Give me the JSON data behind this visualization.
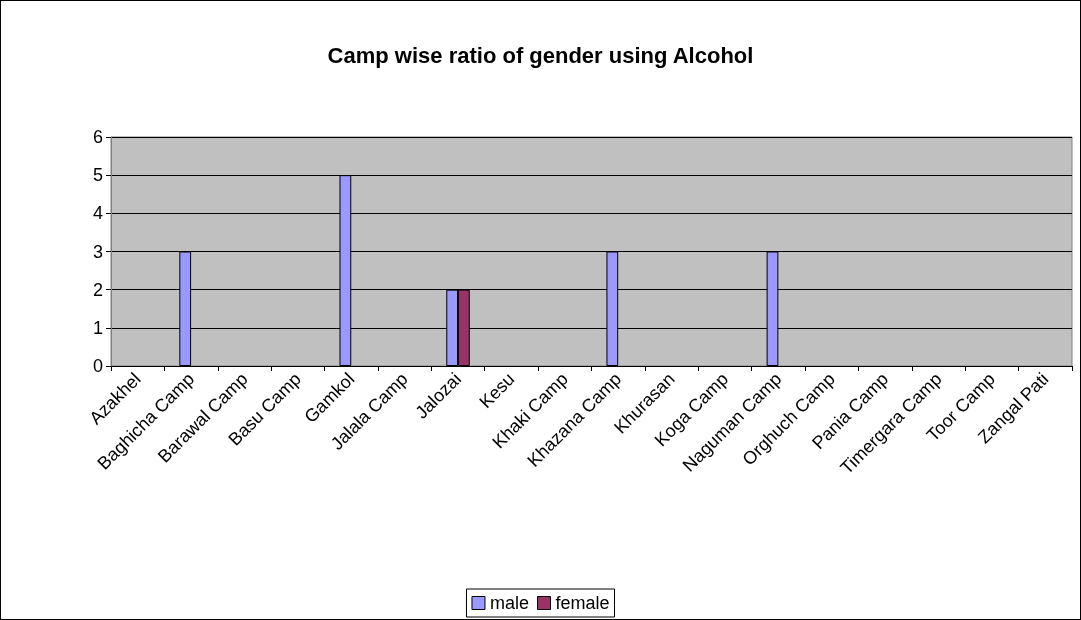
{
  "chart_data": {
    "type": "bar",
    "title": "Camp wise ratio of gender using Alcohol",
    "categories": [
      "Azakhel",
      "Baghicha Camp",
      "Barawal Camp",
      "Basu Camp",
      "Gamkol",
      "Jalala Camp",
      "Jalozai",
      "Kesu",
      "Khaki Camp",
      "Khazana Camp",
      "Khurasan",
      "Koga Camp",
      "Naguman Camp",
      "Orghuch Camp",
      "Pania Camp",
      "Timergara Camp",
      "Toor Camp",
      "Zangal Pati"
    ],
    "series": [
      {
        "name": "male",
        "color": "#9999ff",
        "values": [
          null,
          3,
          null,
          null,
          5,
          null,
          2,
          null,
          null,
          3,
          null,
          null,
          3,
          null,
          null,
          null,
          null,
          null
        ]
      },
      {
        "name": "female",
        "color": "#993366",
        "values": [
          null,
          null,
          null,
          null,
          null,
          null,
          2,
          null,
          null,
          null,
          null,
          null,
          null,
          null,
          null,
          null,
          null,
          null
        ]
      }
    ],
    "ylim": [
      0,
      6
    ],
    "yticks": [
      0,
      1,
      2,
      3,
      4,
      5,
      6
    ],
    "grid": "y",
    "legend": "bottom"
  }
}
